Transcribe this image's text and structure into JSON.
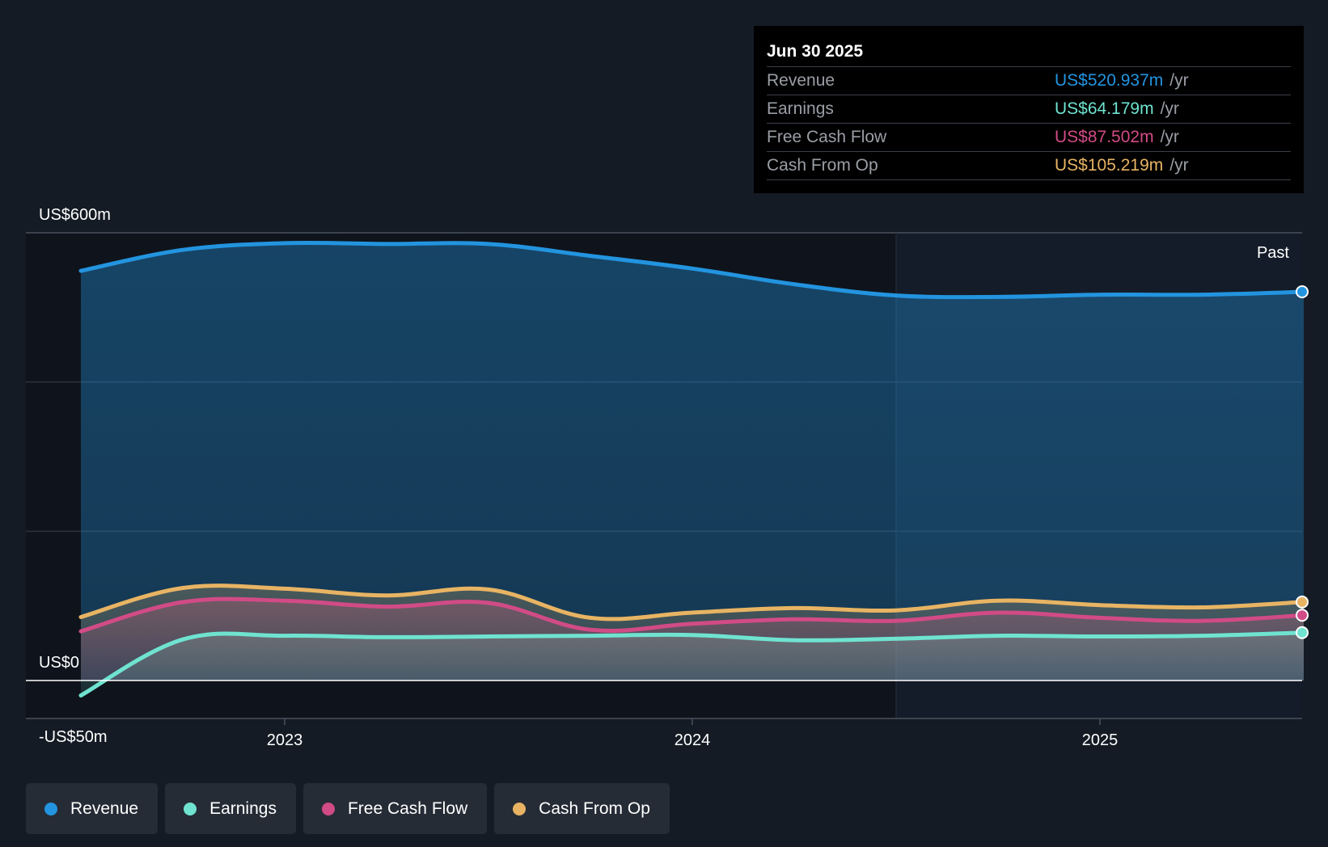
{
  "tooltip": {
    "date": "Jun 30 2025",
    "rows": [
      {
        "label": "Revenue",
        "value": "US$520.937m",
        "unit": "/yr",
        "color": "#2394df"
      },
      {
        "label": "Earnings",
        "value": "US$64.179m",
        "unit": "/yr",
        "color": "#6fe3d0"
      },
      {
        "label": "Free Cash Flow",
        "value": "US$87.502m",
        "unit": "/yr",
        "color": "#d14b86"
      },
      {
        "label": "Cash From Op",
        "value": "US$105.219m",
        "unit": "/yr",
        "color": "#e8b463"
      }
    ]
  },
  "legend": [
    {
      "label": "Revenue",
      "color": "#2394df"
    },
    {
      "label": "Earnings",
      "color": "#6fe3d0"
    },
    {
      "label": "Free Cash Flow",
      "color": "#d14b86"
    },
    {
      "label": "Cash From Op",
      "color": "#e8b463"
    }
  ],
  "chart_data": {
    "type": "area",
    "title": "",
    "xlabel": "",
    "ylabel": "",
    "ylim": [
      -50,
      600
    ],
    "y_tick_labels": [
      {
        "value": 600,
        "label": "US$600m"
      },
      {
        "value": 0,
        "label": "US$0"
      },
      {
        "value": -50,
        "label": "-US$50m"
      }
    ],
    "x_ticks": [
      {
        "value": 2023.0,
        "label": "2023"
      },
      {
        "value": 2024.0,
        "label": "2024"
      },
      {
        "value": 2025.0,
        "label": "2025"
      }
    ],
    "xlim": [
      2022.37,
      2025.5
    ],
    "past_start": 2024.5,
    "past_label": "Past",
    "gridlines": [
      600,
      400,
      200
    ],
    "series": [
      {
        "name": "Revenue",
        "color": "#2394df",
        "x": [
          2022.5,
          2022.75,
          2023.0,
          2023.25,
          2023.5,
          2023.75,
          2024.0,
          2024.25,
          2024.5,
          2024.75,
          2025.0,
          2025.25,
          2025.5
        ],
        "y": [
          549,
          577,
          586,
          585,
          585,
          569,
          552,
          531,
          516,
          514,
          517,
          517,
          520.937
        ]
      },
      {
        "name": "Earnings",
        "color": "#6fe3d0",
        "x": [
          2022.5,
          2022.75,
          2023.0,
          2023.25,
          2023.5,
          2023.75,
          2024.0,
          2024.25,
          2024.5,
          2024.75,
          2025.0,
          2025.25,
          2025.5
        ],
        "y": [
          -20,
          55,
          60,
          58,
          59,
          60,
          61,
          54,
          56,
          60,
          59,
          60,
          64.179
        ]
      },
      {
        "name": "Free Cash Flow",
        "color": "#d14b86",
        "x": [
          2022.5,
          2022.75,
          2023.0,
          2023.25,
          2023.5,
          2023.75,
          2024.0,
          2024.25,
          2024.5,
          2024.75,
          2025.0,
          2025.25,
          2025.5
        ],
        "y": [
          66,
          105,
          107,
          99,
          104,
          68,
          76,
          82,
          80,
          91,
          84,
          80,
          87.502
        ]
      },
      {
        "name": "Cash From Op",
        "color": "#e8b463",
        "x": [
          2022.5,
          2022.75,
          2023.0,
          2023.25,
          2023.5,
          2023.75,
          2024.0,
          2024.25,
          2024.5,
          2024.75,
          2025.0,
          2025.25,
          2025.5
        ],
        "y": [
          85,
          124,
          123,
          114,
          122,
          84,
          91,
          97,
          94,
          107,
          101,
          98,
          105.219
        ]
      }
    ]
  }
}
